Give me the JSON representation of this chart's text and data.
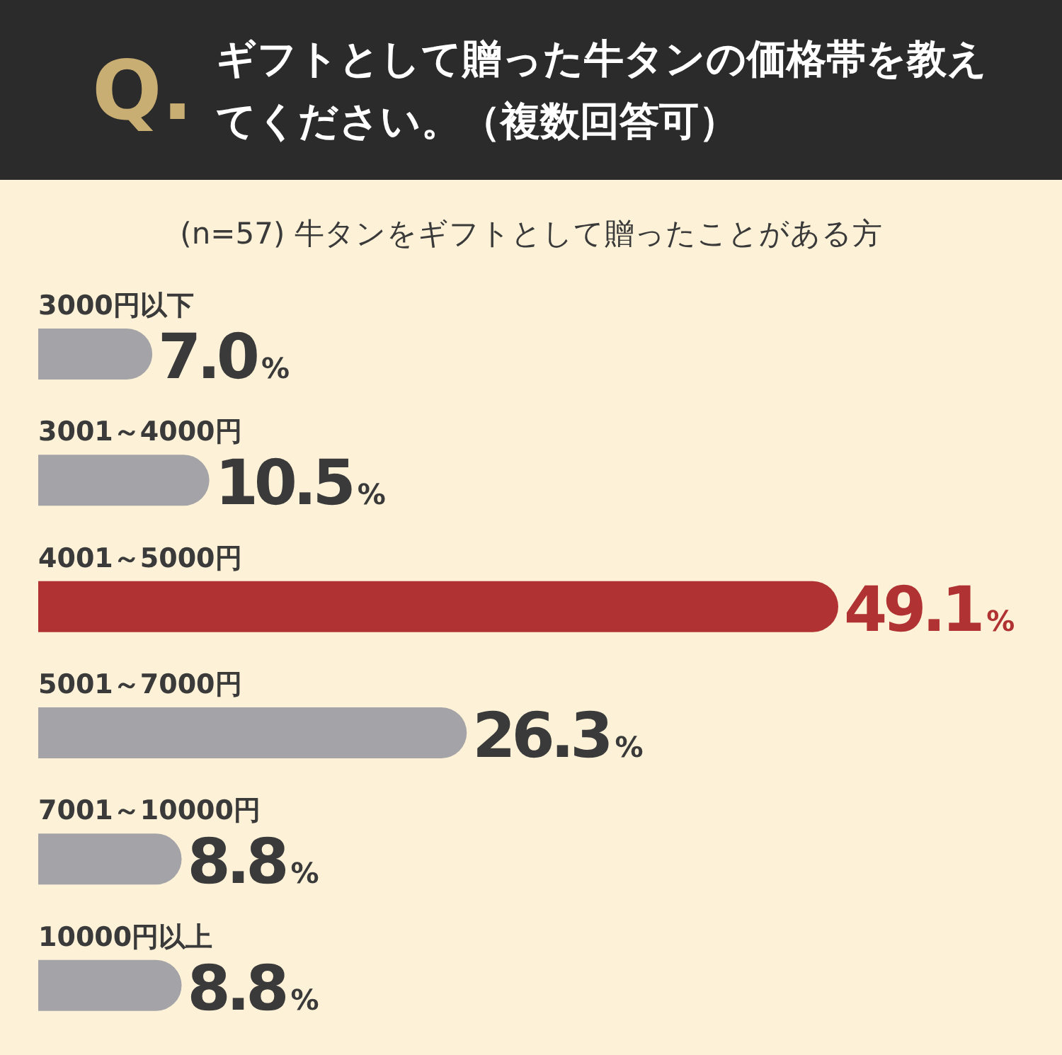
{
  "chart_data": {
    "type": "bar",
    "orientation": "horizontal",
    "title": "Q. ギフトとして贈った牛タンの価格帯を教えてください。（複数回答可）",
    "subtitle": "(n=57) 牛タンをギフトとして贈ったことがある方",
    "categories": [
      "3000円以下",
      "3001～4000円",
      "4001～5000円",
      "5001～7000円",
      "7001～10000円",
      "10000円以上"
    ],
    "values": [
      7.0,
      10.5,
      49.1,
      26.3,
      8.8,
      8.8
    ],
    "value_labels": [
      "7.0%",
      "10.5%",
      "49.1%",
      "26.3%",
      "8.8%",
      "8.8%"
    ],
    "colors": [
      "#a3a3a8",
      "#a3a3a8",
      "#b03232",
      "#a3a3a8",
      "#a3a3a8",
      "#a3a3a8"
    ]
  }
}
